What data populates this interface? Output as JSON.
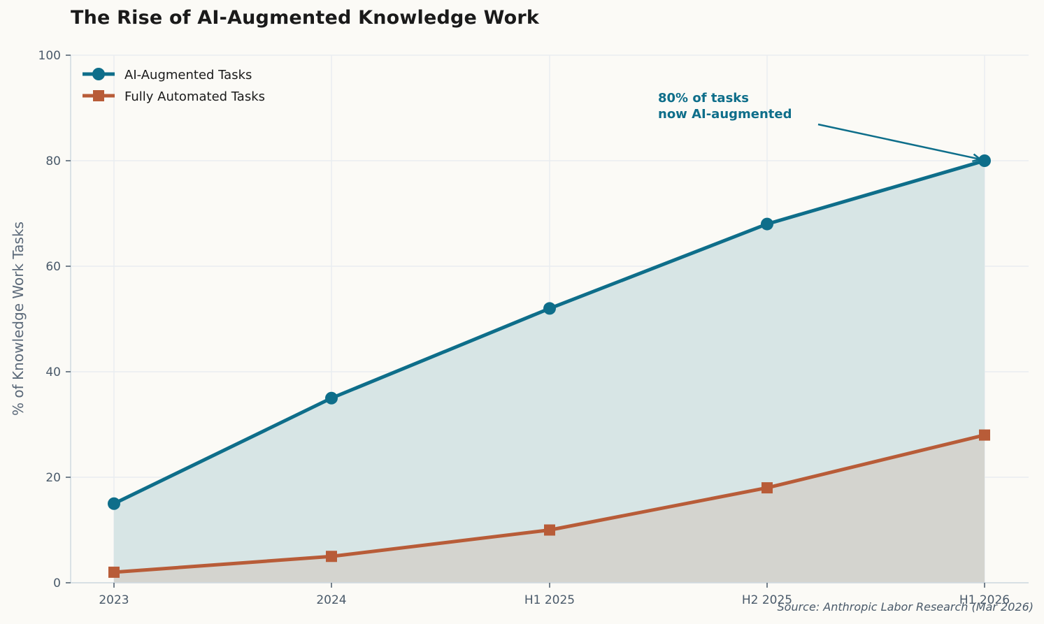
{
  "chart_data": {
    "type": "line",
    "title": "The Rise of AI-Augmented Knowledge Work",
    "xlabel": "",
    "ylabel": "% of Knowledge Work Tasks",
    "categories": [
      "2023",
      "2024",
      "H1 2025",
      "H2 2025",
      "H1 2026"
    ],
    "series": [
      {
        "name": "AI-Augmented Tasks",
        "values": [
          15,
          35,
          52,
          68,
          80
        ],
        "color": "#0e6e8a",
        "marker": "circle",
        "fill": "#d7e5e5"
      },
      {
        "name": "Fully Automated Tasks",
        "values": [
          2,
          5,
          10,
          18,
          28
        ],
        "color": "#b85c38",
        "marker": "square",
        "fill": "#d4d4cf"
      }
    ],
    "ylim": [
      0,
      100
    ],
    "yticks": [
      0,
      20,
      40,
      60,
      80,
      100
    ],
    "grid": true,
    "legend_position": "upper left",
    "annotations": [
      {
        "text_line1": "80% of tasks",
        "text_line2": "now AI-augmented",
        "target_category": "H1 2026",
        "target_value": 80,
        "color": "#0e6e8a"
      }
    ],
    "source": "Source: Anthropic Labor Research (Mar 2026)"
  },
  "colors": {
    "background": "#fbfaf6",
    "grid": "#e9edf0",
    "axis": "#d0dae0",
    "tick_text": "#4a5a6a"
  }
}
